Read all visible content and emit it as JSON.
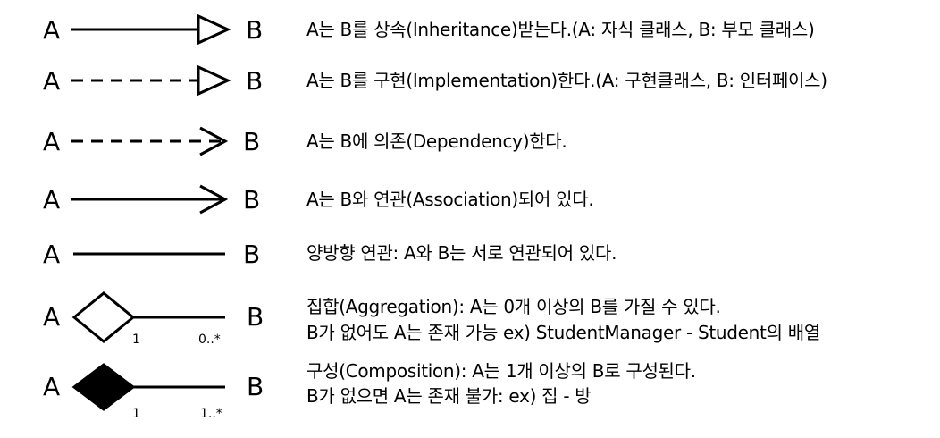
{
  "rows": [
    {
      "a": "A",
      "b": "B",
      "desc1": "A는 B를 상속(Inheritance)받는다.(A: 자식 클래스, B: 부모 클래스)"
    },
    {
      "a": "A",
      "b": "B",
      "desc1": "A는 B를 구현(Implementation)한다.(A: 구현클래스, B: 인터페이스)"
    },
    {
      "a": "A",
      "b": "B",
      "desc1": "A는 B에 의존(Dependency)한다."
    },
    {
      "a": "A",
      "b": "B",
      "desc1": "A는 B와 연관(Association)되어 있다."
    },
    {
      "a": "A",
      "b": "B",
      "desc1": "양방향 연관:  A와 B는 서로 연관되어 있다."
    },
    {
      "a": "A",
      "b": "B",
      "mult_a": "1",
      "mult_b": "0..*",
      "desc1": "집합(Aggregation): A는 0개 이상의 B를 가질 수 있다.",
      "desc2": "B가 없어도 A는 존재 가능 ex) StudentManager - Student의 배열"
    },
    {
      "a": "A",
      "b": "B",
      "mult_a": "1",
      "mult_b": "1..*",
      "desc1": "구성(Composition): A는 1개 이상의 B로 구성된다.",
      "desc2": "B가 없으면 A는 존재 불가: ex) 집 - 방"
    }
  ]
}
